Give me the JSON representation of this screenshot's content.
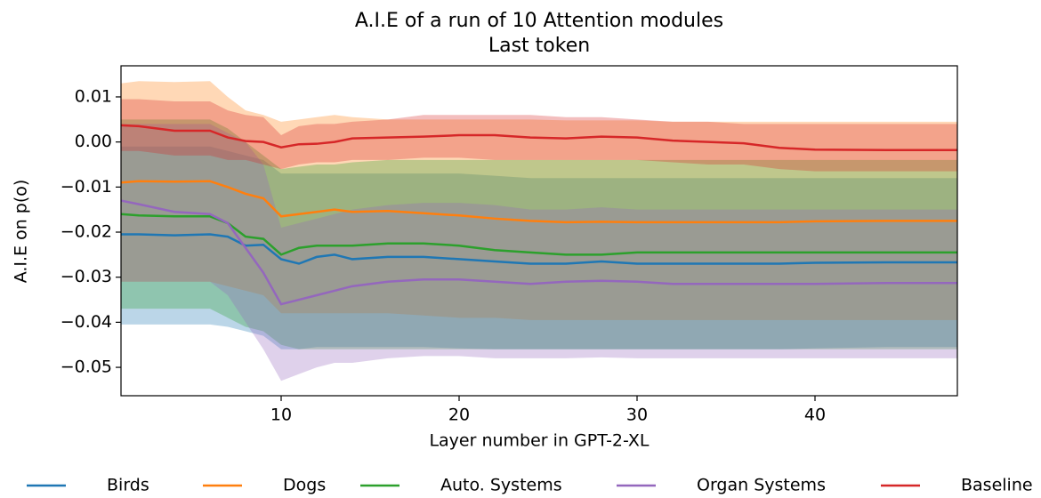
{
  "chart_data": {
    "type": "line",
    "title": "A.I.E of a run of 10 Attention modules",
    "subtitle": "Last token",
    "x_label": "Layer number in GPT-2-XL",
    "y_label": "A.I.E on p(o)",
    "x": [
      1,
      2,
      4,
      6,
      7,
      8,
      9,
      10,
      11,
      12,
      13,
      14,
      16,
      18,
      20,
      22,
      24,
      26,
      28,
      30,
      32,
      34,
      36,
      38,
      40,
      44,
      48
    ],
    "xlim": [
      1,
      48
    ],
    "xticks": [
      10,
      20,
      30,
      40
    ],
    "ylim": [
      -0.0563,
      0.0169
    ],
    "yticks": [
      {
        "value": -0.05,
        "label": "−0.05"
      },
      {
        "value": -0.04,
        "label": "−0.04"
      },
      {
        "value": -0.03,
        "label": "−0.03"
      },
      {
        "value": -0.02,
        "label": "−0.02"
      },
      {
        "value": -0.01,
        "label": "−0.01"
      },
      {
        "value": 0,
        "label": "0.00"
      },
      0.01
    ],
    "legend": "bottom",
    "series": [
      {
        "name": "Birds",
        "color": "#1f77b4",
        "values": [
          -0.0205,
          -0.0205,
          -0.0207,
          -0.0205,
          -0.021,
          -0.023,
          -0.0228,
          -0.026,
          -0.027,
          -0.0255,
          -0.025,
          -0.026,
          -0.0255,
          -0.0255,
          -0.026,
          -0.0265,
          -0.027,
          -0.027,
          -0.0265,
          -0.027,
          -0.027,
          -0.027,
          -0.027,
          -0.027,
          -0.0268,
          -0.0267,
          -0.0267
        ],
        "lower": [
          -0.0405,
          -0.0405,
          -0.0405,
          -0.0405,
          -0.041,
          -0.042,
          -0.043,
          -0.046,
          -0.046,
          -0.0455,
          -0.0455,
          -0.0455,
          -0.0455,
          -0.0455,
          -0.0458,
          -0.046,
          -0.046,
          -0.046,
          -0.046,
          -0.046,
          -0.046,
          -0.046,
          -0.046,
          -0.046,
          -0.0458,
          -0.0455,
          -0.0455
        ],
        "upper": [
          -0.001,
          -0.001,
          -0.001,
          -0.001,
          -0.002,
          -0.003,
          -0.004,
          -0.007,
          -0.007,
          -0.007,
          -0.007,
          -0.007,
          -0.007,
          -0.007,
          -0.007,
          -0.0075,
          -0.008,
          -0.008,
          -0.008,
          -0.008,
          -0.008,
          -0.008,
          -0.008,
          -0.008,
          -0.008,
          -0.008,
          -0.008
        ]
      },
      {
        "name": "Dogs",
        "color": "#ff7f0e",
        "values": [
          -0.009,
          -0.0087,
          -0.0088,
          -0.0087,
          -0.01,
          -0.0115,
          -0.0125,
          -0.0165,
          -0.016,
          -0.0155,
          -0.015,
          -0.0155,
          -0.0153,
          -0.0158,
          -0.0163,
          -0.017,
          -0.0175,
          -0.0178,
          -0.0177,
          -0.0178,
          -0.0178,
          -0.0178,
          -0.0178,
          -0.0178,
          -0.0176,
          -0.0175,
          -0.0175
        ],
        "lower": [
          -0.031,
          -0.031,
          -0.031,
          -0.031,
          -0.032,
          -0.033,
          -0.034,
          -0.038,
          -0.038,
          -0.038,
          -0.038,
          -0.038,
          -0.038,
          -0.0385,
          -0.039,
          -0.039,
          -0.0395,
          -0.0395,
          -0.0395,
          -0.0395,
          -0.0395,
          -0.0395,
          -0.0395,
          -0.0395,
          -0.0395,
          -0.0395,
          -0.0395
        ],
        "upper": [
          0.013,
          0.0135,
          0.0133,
          0.0135,
          0.01,
          0.007,
          0.006,
          0.0045,
          0.005,
          0.0055,
          0.006,
          0.0055,
          0.005,
          0.005,
          0.005,
          0.005,
          0.005,
          0.0048,
          0.0048,
          0.0048,
          0.0045,
          0.0045,
          0.0045,
          0.0045,
          0.0045,
          0.0045,
          0.0045
        ]
      },
      {
        "name": "Auto. Systems",
        "color": "#2ca02c",
        "values": [
          -0.016,
          -0.0163,
          -0.0165,
          -0.0165,
          -0.018,
          -0.021,
          -0.0215,
          -0.025,
          -0.0235,
          -0.023,
          -0.023,
          -0.023,
          -0.0225,
          -0.0225,
          -0.023,
          -0.024,
          -0.0245,
          -0.025,
          -0.025,
          -0.0245,
          -0.0245,
          -0.0245,
          -0.0245,
          -0.0245,
          -0.0245,
          -0.0245,
          -0.0245
        ],
        "lower": [
          -0.037,
          -0.037,
          -0.037,
          -0.037,
          -0.039,
          -0.041,
          -0.042,
          -0.045,
          -0.046,
          -0.046,
          -0.046,
          -0.046,
          -0.046,
          -0.046,
          -0.046,
          -0.046,
          -0.046,
          -0.046,
          -0.046,
          -0.046,
          -0.046,
          -0.046,
          -0.046,
          -0.046,
          -0.046,
          -0.046,
          -0.046
        ],
        "upper": [
          0.005,
          0.005,
          0.005,
          0.005,
          0.003,
          0.0,
          -0.003,
          -0.006,
          -0.0055,
          -0.005,
          -0.005,
          -0.0045,
          -0.004,
          -0.004,
          -0.004,
          -0.004,
          -0.004,
          -0.004,
          -0.004,
          -0.004,
          -0.004,
          -0.004,
          -0.004,
          -0.004,
          -0.004,
          -0.004,
          -0.004
        ]
      },
      {
        "name": "Organ Systems",
        "color": "#9467bd",
        "values": [
          -0.013,
          -0.0138,
          -0.0155,
          -0.016,
          -0.018,
          -0.0235,
          -0.029,
          -0.036,
          -0.035,
          -0.034,
          -0.033,
          -0.032,
          -0.031,
          -0.0305,
          -0.0305,
          -0.031,
          -0.0315,
          -0.031,
          -0.0308,
          -0.031,
          -0.0315,
          -0.0315,
          -0.0315,
          -0.0315,
          -0.0315,
          -0.0313,
          -0.0313
        ],
        "lower": [
          -0.031,
          -0.031,
          -0.031,
          -0.031,
          -0.034,
          -0.04,
          -0.046,
          -0.053,
          -0.0515,
          -0.05,
          -0.049,
          -0.049,
          -0.048,
          -0.0475,
          -0.0475,
          -0.048,
          -0.048,
          -0.048,
          -0.0478,
          -0.048,
          -0.048,
          -0.048,
          -0.048,
          -0.048,
          -0.048,
          -0.048,
          -0.048
        ],
        "upper": [
          0.004,
          0.004,
          0.004,
          0.004,
          0.002,
          0.0,
          -0.005,
          -0.019,
          -0.018,
          -0.017,
          -0.016,
          -0.015,
          -0.014,
          -0.0135,
          -0.0135,
          -0.014,
          -0.015,
          -0.015,
          -0.0145,
          -0.015,
          -0.015,
          -0.015,
          -0.015,
          -0.015,
          -0.015,
          -0.015,
          -0.015
        ]
      },
      {
        "name": "Baseline",
        "color": "#d62728",
        "values": [
          0.0037,
          0.0035,
          0.0025,
          0.0025,
          0.001,
          0.0002,
          0.0,
          -0.0012,
          -0.0005,
          -0.0004,
          0.0,
          0.0008,
          0.001,
          0.0012,
          0.0015,
          0.0015,
          0.001,
          0.0008,
          0.0012,
          0.001,
          0.0003,
          0.0,
          -0.0003,
          -0.0013,
          -0.0017,
          -0.0018,
          -0.0018
        ],
        "lower": [
          -0.002,
          -0.002,
          -0.003,
          -0.003,
          -0.004,
          -0.004,
          -0.005,
          -0.006,
          -0.005,
          -0.0045,
          -0.0045,
          -0.004,
          -0.004,
          -0.0035,
          -0.0035,
          -0.004,
          -0.004,
          -0.004,
          -0.004,
          -0.004,
          -0.0045,
          -0.005,
          -0.005,
          -0.006,
          -0.0065,
          -0.0065,
          -0.0065
        ],
        "upper": [
          0.0095,
          0.0095,
          0.009,
          0.009,
          0.007,
          0.006,
          0.0055,
          0.0015,
          0.0035,
          0.004,
          0.004,
          0.0045,
          0.005,
          0.006,
          0.006,
          0.006,
          0.006,
          0.0055,
          0.0055,
          0.005,
          0.0045,
          0.0045,
          0.004,
          0.004,
          0.004,
          0.004,
          0.004
        ]
      }
    ]
  }
}
